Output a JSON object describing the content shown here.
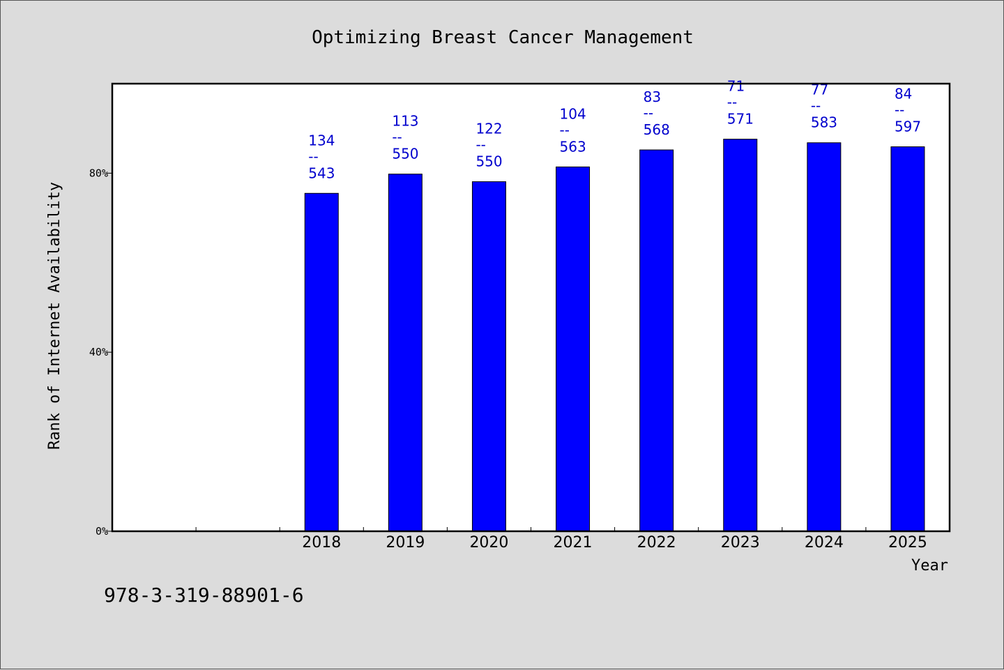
{
  "chart_data": {
    "type": "bar",
    "title": "Optimizing Breast Cancer Management",
    "xlabel": "Year",
    "ylabel": "Rank of Internet Availability",
    "categories": [
      "2018",
      "2019",
      "2020",
      "2021",
      "2022",
      "2023",
      "2024",
      "2025"
    ],
    "values": [
      75.5,
      79.8,
      78.1,
      81.4,
      85.2,
      87.6,
      86.8,
      85.9
    ],
    "value_unit": "%",
    "data_labels": [
      {
        "rank": "134",
        "total": "543"
      },
      {
        "rank": "113",
        "total": "550"
      },
      {
        "rank": "122",
        "total": "550"
      },
      {
        "rank": "104",
        "total": "563"
      },
      {
        "rank": "83",
        "total": "568"
      },
      {
        "rank": "71",
        "total": "571"
      },
      {
        "rank": "77",
        "total": "583"
      },
      {
        "rank": "84",
        "total": "597"
      }
    ],
    "label_separator": "--",
    "ylim": [
      0,
      100
    ],
    "yticks": [
      0,
      40,
      80
    ],
    "ytick_labels": [
      "0%",
      "40%",
      "80%"
    ],
    "x_slots": 10,
    "grid": false,
    "legend": "none",
    "bar_color": "#0000ff",
    "label_color": "#0000cd",
    "plot_background": "#ffffff",
    "page_background": "#dcdcdc"
  },
  "footnote": "978-3-319-88901-6"
}
